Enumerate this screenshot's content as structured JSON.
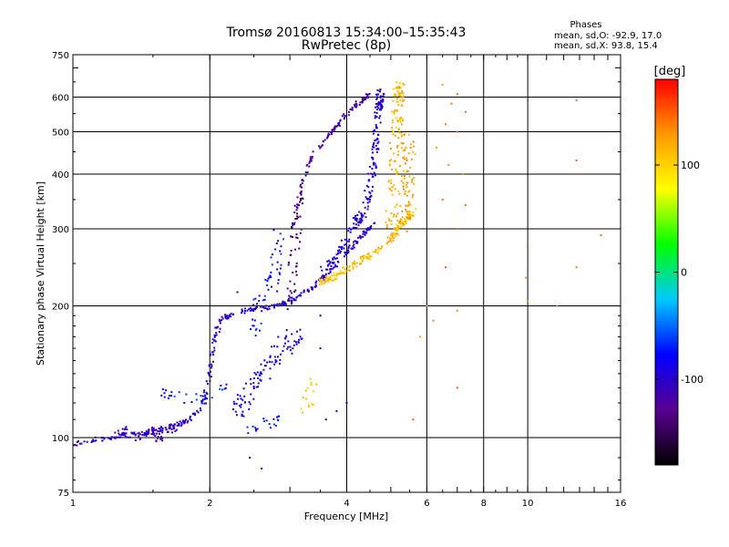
{
  "chart_data": {
    "type": "scatter",
    "title": "Tromsø 20160813 15:34:00–15:35:43",
    "subtitle": "RwPretec (8p)",
    "xlabel": "Frequency [MHz]",
    "ylabel": "Stationary phase Virtual Height [km]",
    "x_scale": "log",
    "y_scale": "log",
    "xlim": [
      1,
      16
    ],
    "ylim": [
      75,
      750
    ],
    "grid": true,
    "x_ticks": [
      1,
      2,
      4,
      6,
      8,
      10,
      16
    ],
    "x_grid": [
      2,
      4,
      6,
      8,
      10
    ],
    "y_ticks": [
      75,
      100,
      200,
      300,
      400,
      500,
      600,
      750
    ],
    "y_grid": [
      100,
      200,
      300,
      400,
      500,
      600
    ],
    "stats": {
      "heading": "Phases",
      "line_o": "mean, sd,O: -92.9, 17.0",
      "line_x": "mean, sd,X:  93.8, 15.4"
    },
    "colorbar": {
      "label": "[deg]",
      "min": -180,
      "max": 180,
      "ticks": [
        100,
        0,
        -100
      ],
      "colors": [
        "#000000",
        "#5a0090",
        "#0000ff",
        "#00c8ff",
        "#00ff00",
        "#ffff00",
        "#ff9900",
        "#ff0000"
      ]
    },
    "traces": [
      {
        "pts": [
          [
            1.0,
            96
          ],
          [
            1.1,
            99
          ],
          [
            1.2,
            100
          ],
          [
            1.3,
            101
          ],
          [
            1.4,
            102
          ],
          [
            1.5,
            103
          ],
          [
            1.6,
            105
          ],
          [
            1.7,
            107
          ],
          [
            1.8,
            110
          ],
          [
            1.9,
            115
          ],
          [
            1.95,
            125
          ],
          [
            2.0,
            140
          ],
          [
            2.05,
            165
          ],
          [
            2.1,
            185
          ],
          [
            2.2,
            190
          ],
          [
            2.4,
            195
          ],
          [
            2.6,
            197
          ],
          [
            2.8,
            200
          ],
          [
            3.0,
            205
          ],
          [
            3.2,
            212
          ],
          [
            3.4,
            222
          ],
          [
            3.6,
            235
          ],
          [
            3.8,
            250
          ],
          [
            4.0,
            265
          ],
          [
            4.2,
            280
          ],
          [
            4.4,
            295
          ],
          [
            4.6,
            310
          ]
        ],
        "phase": -100,
        "n": 380,
        "jit": 0.012
      },
      {
        "pts": [
          [
            1.2,
            100
          ],
          [
            1.3,
            104
          ],
          [
            1.4,
            100
          ],
          [
            1.5,
            105
          ],
          [
            1.55,
            99
          ],
          [
            1.6,
            104
          ],
          [
            1.7,
            106
          ]
        ],
        "phase": -110,
        "n": 60,
        "jit": 0.02
      },
      {
        "pts": [
          [
            3.05,
            300
          ],
          [
            3.2,
            390
          ],
          [
            3.4,
            450
          ],
          [
            3.7,
            500
          ],
          [
            4.0,
            550
          ],
          [
            4.3,
            590
          ],
          [
            4.5,
            610
          ]
        ],
        "phase": -120,
        "n": 120,
        "jit": 0.01
      },
      {
        "pts": [
          [
            4.2,
            300
          ],
          [
            4.4,
            340
          ],
          [
            4.55,
            400
          ],
          [
            4.65,
            480
          ],
          [
            4.7,
            560
          ],
          [
            4.75,
            620
          ]
        ],
        "phase": -100,
        "n": 150,
        "jit": 0.02
      },
      {
        "pts": [
          [
            3.5,
            240
          ],
          [
            3.8,
            260
          ],
          [
            4.0,
            285
          ],
          [
            4.2,
            320
          ]
        ],
        "phase": -90,
        "n": 50,
        "jit": 0.015
      },
      {
        "pts": [
          [
            2.75,
            220
          ],
          [
            2.8,
            260
          ],
          [
            2.85,
            300
          ]
        ],
        "phase": -70,
        "n": 25,
        "jit": 0.03
      },
      {
        "pts": [
          [
            2.5,
            170
          ],
          [
            2.55,
            200
          ],
          [
            2.65,
            225
          ],
          [
            2.7,
            240
          ]
        ],
        "phase": -75,
        "n": 25,
        "jit": 0.03
      },
      {
        "pts": [
          [
            3.0,
            200
          ],
          [
            3.05,
            250
          ],
          [
            3.1,
            300
          ],
          [
            3.15,
            360
          ]
        ],
        "phase": -140,
        "n": 50,
        "jit": 0.025
      },
      {
        "pts": [
          [
            2.3,
            110
          ],
          [
            2.5,
            130
          ],
          [
            2.7,
            145
          ],
          [
            2.9,
            155
          ],
          [
            3.2,
            170
          ]
        ],
        "phase": -100,
        "n": 60,
        "jit": 0.03
      },
      {
        "pts": [
          [
            2.2,
            115
          ],
          [
            2.5,
            135
          ],
          [
            2.8,
            160
          ],
          [
            3.1,
            180
          ]
        ],
        "phase": -90,
        "n": 40,
        "jit": 0.03
      },
      {
        "pts": [
          [
            1.6,
            125
          ],
          [
            1.7,
            128
          ],
          [
            1.8,
            120
          ],
          [
            2.0,
            125
          ],
          [
            2.2,
            130
          ]
        ],
        "phase": -70,
        "n": 30,
        "jit": 0.03
      },
      {
        "pts": [
          [
            2.4,
            105
          ],
          [
            2.7,
            108
          ],
          [
            2.9,
            110
          ]
        ],
        "phase": -70,
        "n": 20,
        "jit": 0.03
      },
      {
        "pts": [
          [
            3.5,
            225
          ],
          [
            3.8,
            235
          ],
          [
            4.2,
            250
          ],
          [
            4.6,
            265
          ],
          [
            5.0,
            285
          ],
          [
            5.3,
            310
          ],
          [
            5.6,
            330
          ]
        ],
        "phase": 110,
        "n": 180,
        "jit": 0.015
      },
      {
        "pts": [
          [
            5.0,
            300
          ],
          [
            5.1,
            400
          ],
          [
            5.15,
            500
          ],
          [
            5.2,
            600
          ],
          [
            5.25,
            640
          ]
        ],
        "phase": 115,
        "n": 120,
        "jit": 0.03
      },
      {
        "pts": [
          [
            5.3,
            300
          ],
          [
            5.4,
            350
          ],
          [
            5.45,
            420
          ],
          [
            5.5,
            480
          ]
        ],
        "phase": 125,
        "n": 80,
        "jit": 0.035
      },
      {
        "pts": [
          [
            3.25,
            115
          ],
          [
            3.3,
            125
          ],
          [
            3.35,
            135
          ]
        ],
        "phase": 105,
        "n": 15,
        "jit": 0.03
      },
      {
        "pts": [
          [
            2.3,
            215
          ],
          [
            2.5,
            180
          ],
          [
            2.6,
            140
          ],
          [
            3.5,
            190
          ],
          [
            3.5,
            160
          ],
          [
            3.6,
            110
          ],
          [
            3.8,
            115
          ],
          [
            4.0,
            120
          ],
          [
            2.6,
            85
          ],
          [
            2.45,
            90
          ]
        ],
        "phase": -90,
        "n": 0,
        "jit": 0.05
      },
      {
        "pts": [
          [
            6.5,
            640
          ],
          [
            7.0,
            610
          ],
          [
            6.8,
            580
          ],
          [
            7.3,
            555
          ],
          [
            6.6,
            520
          ],
          [
            7.0,
            500
          ],
          [
            6.3,
            460
          ],
          [
            6.7,
            420
          ],
          [
            7.2,
            400
          ],
          [
            6.5,
            350
          ],
          [
            7.3,
            340
          ],
          [
            6.2,
            300
          ],
          [
            7.0,
            300
          ],
          [
            6.6,
            245
          ],
          [
            6.0,
            200
          ],
          [
            7.0,
            195
          ],
          [
            6.2,
            185
          ],
          [
            5.8,
            170
          ],
          [
            7.0,
            130
          ],
          [
            10.0,
            275
          ],
          [
            9.9,
            232
          ],
          [
            10.0,
            205
          ],
          [
            12.8,
            245
          ],
          [
            11.6,
            200
          ],
          [
            12.8,
            430
          ],
          [
            12.8,
            590
          ],
          [
            14.5,
            290
          ],
          [
            5.6,
            110
          ]
        ],
        "phase": 140,
        "n": 0,
        "jit": 0.0
      }
    ]
  }
}
